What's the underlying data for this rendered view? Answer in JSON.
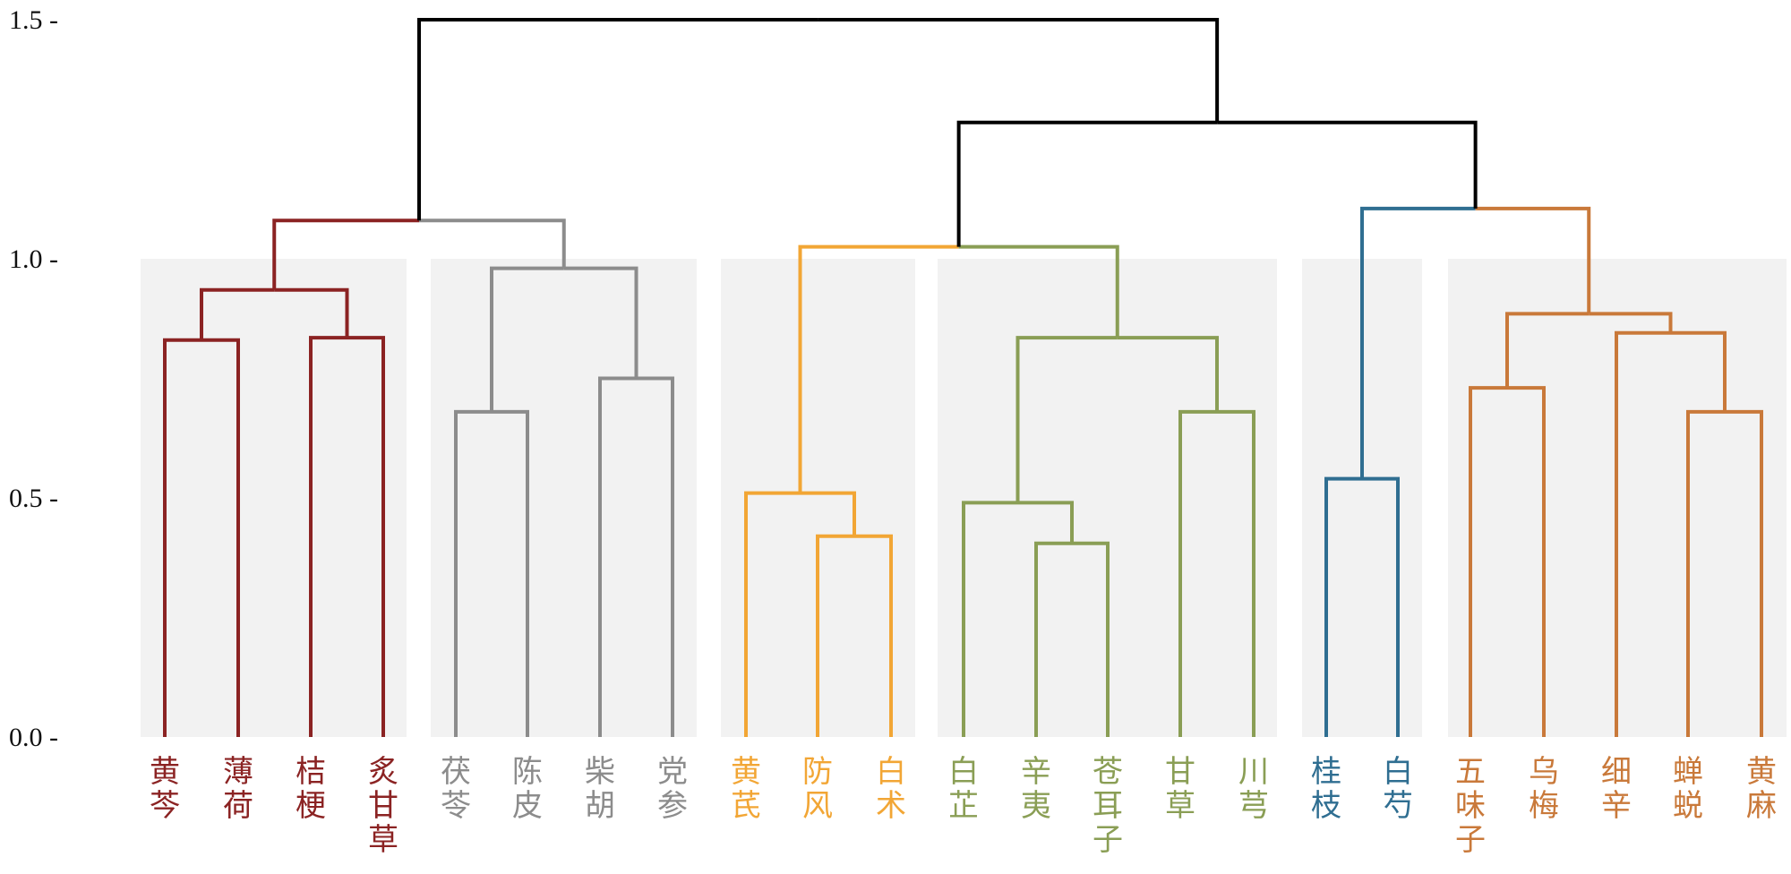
{
  "chart_data": {
    "type": "dendrogram",
    "title": "",
    "xlabel": "",
    "ylabel": "",
    "ylim": [
      0,
      1.5
    ],
    "yticks": [
      {
        "value": 0.0,
        "label": "0.0 -"
      },
      {
        "value": 0.5,
        "label": "0.5 -"
      },
      {
        "value": 1.0,
        "label": "1.0 -"
      },
      {
        "value": 1.5,
        "label": "1.5 -"
      }
    ],
    "cluster_shading_height": 1.0,
    "clusters": [
      {
        "name": "cluster-1",
        "color": "#8B2323",
        "leaves": [
          "黄芩",
          "薄荷",
          "桔梗",
          "炙甘草"
        ]
      },
      {
        "name": "cluster-2",
        "color": "#8C8C8C",
        "leaves": [
          "茯苓",
          "陈皮",
          "柴胡",
          "党参"
        ]
      },
      {
        "name": "cluster-3",
        "color": "#F2A635",
        "leaves": [
          "黄芪",
          "防风",
          "白术"
        ]
      },
      {
        "name": "cluster-4",
        "color": "#8A9E55",
        "leaves": [
          "白芷",
          "辛夷",
          "苍耳子",
          "甘草",
          "川芎"
        ]
      },
      {
        "name": "cluster-5",
        "color": "#2F6E91",
        "leaves": [
          "桂枝",
          "白芍"
        ]
      },
      {
        "name": "cluster-6",
        "color": "#C9793A",
        "leaves": [
          "五味子",
          "乌梅",
          "细辛",
          "蝉蜕",
          "黄麻"
        ]
      }
    ],
    "leaves": [
      "黄芩",
      "薄荷",
      "桔梗",
      "炙甘草",
      "茯苓",
      "陈皮",
      "柴胡",
      "党参",
      "黄芪",
      "防风",
      "白术",
      "白芷",
      "辛夷",
      "苍耳子",
      "甘草",
      "川芎",
      "桂枝",
      "白芍",
      "五味子",
      "乌梅",
      "细辛",
      "蝉蜕",
      "黄麻"
    ],
    "merges": [
      {
        "id": "m1",
        "left": 0,
        "right": 1,
        "height": 0.83,
        "color": "#8B2323"
      },
      {
        "id": "m2",
        "left": 2,
        "right": 3,
        "height": 0.835,
        "color": "#8B2323"
      },
      {
        "id": "m3",
        "left": "m1",
        "right": "m2",
        "height": 0.935,
        "color": "#8B2323"
      },
      {
        "id": "m4",
        "left": 4,
        "right": 5,
        "height": 0.68,
        "color": "#8C8C8C"
      },
      {
        "id": "m5",
        "left": 6,
        "right": 7,
        "height": 0.75,
        "color": "#8C8C8C"
      },
      {
        "id": "m6",
        "left": "m4",
        "right": "m5",
        "height": 0.98,
        "color": "#8C8C8C"
      },
      {
        "id": "m7",
        "left": "m3",
        "right": "m6",
        "height": 1.08,
        "color_left": "#8B2323",
        "color_right": "#8C8C8C"
      },
      {
        "id": "m8",
        "left": 9,
        "right": 10,
        "height": 0.42,
        "color": "#F2A635"
      },
      {
        "id": "m9",
        "left": 8,
        "right": "m8",
        "height": 0.51,
        "color": "#F2A635"
      },
      {
        "id": "m10",
        "left": 12,
        "right": 13,
        "height": 0.405,
        "color": "#8A9E55"
      },
      {
        "id": "m11",
        "left": 11,
        "right": "m10",
        "height": 0.49,
        "color": "#8A9E55"
      },
      {
        "id": "m12",
        "left": 14,
        "right": 15,
        "height": 0.68,
        "color": "#8A9E55"
      },
      {
        "id": "m13",
        "left": "m11",
        "right": "m12",
        "height": 0.835,
        "color": "#8A9E55"
      },
      {
        "id": "m14",
        "left": "m9",
        "right": "m13",
        "height": 1.025,
        "color_left": "#F2A635",
        "color_right": "#8A9E55"
      },
      {
        "id": "m15",
        "left": 16,
        "right": 17,
        "height": 0.54,
        "color": "#2F6E91"
      },
      {
        "id": "m16",
        "left": 18,
        "right": 19,
        "height": 0.73,
        "color": "#C9793A"
      },
      {
        "id": "m17",
        "left": 21,
        "right": 22,
        "height": 0.68,
        "color": "#C9793A"
      },
      {
        "id": "m18",
        "left": 20,
        "right": "m17",
        "height": 0.845,
        "color": "#C9793A"
      },
      {
        "id": "m19",
        "left": "m16",
        "right": "m18",
        "height": 0.885,
        "color": "#C9793A"
      },
      {
        "id": "m20",
        "left": "m15",
        "right": "m19",
        "height": 1.105,
        "color_left": "#2F6E91",
        "color_right": "#C9793A"
      },
      {
        "id": "m21",
        "left": "m14",
        "right": "m20",
        "height": 1.285,
        "color": "#000000"
      },
      {
        "id": "m22",
        "left": "m7",
        "right": "m21",
        "height": 1.5,
        "color": "#000000"
      }
    ]
  }
}
